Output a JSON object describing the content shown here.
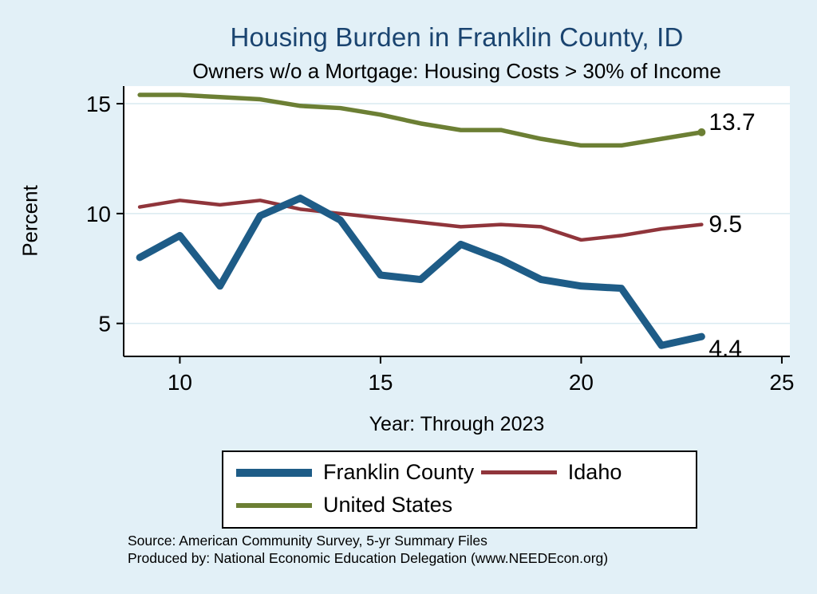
{
  "chart_data": {
    "type": "line",
    "title": "Housing Burden in Franklin County, ID",
    "subtitle": "Owners w/o a Mortgage: Housing Costs > 30% of Income",
    "ylabel": "Percent",
    "xlabel": "Year: Through 2023",
    "x": [
      9,
      10,
      11,
      12,
      13,
      14,
      15,
      16,
      17,
      18,
      19,
      20,
      21,
      22,
      23
    ],
    "series": [
      {
        "key": "franklin",
        "name": "Franklin County",
        "color": "#1e5c87",
        "values": [
          8.0,
          9.0,
          6.7,
          9.9,
          10.7,
          9.7,
          7.2,
          7.0,
          8.6,
          7.9,
          7.0,
          6.7,
          6.6,
          4.0,
          4.4
        ]
      },
      {
        "key": "idaho",
        "name": "Idaho",
        "color": "#90353b",
        "values": [
          10.3,
          10.6,
          10.4,
          10.6,
          10.2,
          10.0,
          9.8,
          9.6,
          9.4,
          9.5,
          9.4,
          8.8,
          9.0,
          9.3,
          9.5
        ]
      },
      {
        "key": "us",
        "name": "United States",
        "color": "#6c7f34",
        "values": [
          15.4,
          15.4,
          15.3,
          15.2,
          14.9,
          14.8,
          14.5,
          14.1,
          13.8,
          13.8,
          13.4,
          13.1,
          13.1,
          13.4,
          13.7
        ]
      }
    ],
    "end_labels": {
      "franklin": "4.4",
      "idaho": "9.5",
      "us": "13.7"
    },
    "xticks": [
      10,
      15,
      20,
      25
    ],
    "yticks": [
      5,
      10,
      15
    ],
    "xlim": [
      8.6,
      25.2
    ],
    "ylim": [
      3.5,
      15.8
    ],
    "grid": "horizontal",
    "legend_position": "bottom",
    "notes": [
      "Source: American Community Survey, 5-yr Summary Files",
      "Produced by: National Economic Education Delegation (www.NEEDEcon.org)"
    ]
  },
  "colors": {
    "page_background": "#e2f0f7",
    "plot_background": "#ffffff",
    "gridline": "#d9eaf1",
    "axis": "#000000",
    "title": "#1a4470"
  }
}
